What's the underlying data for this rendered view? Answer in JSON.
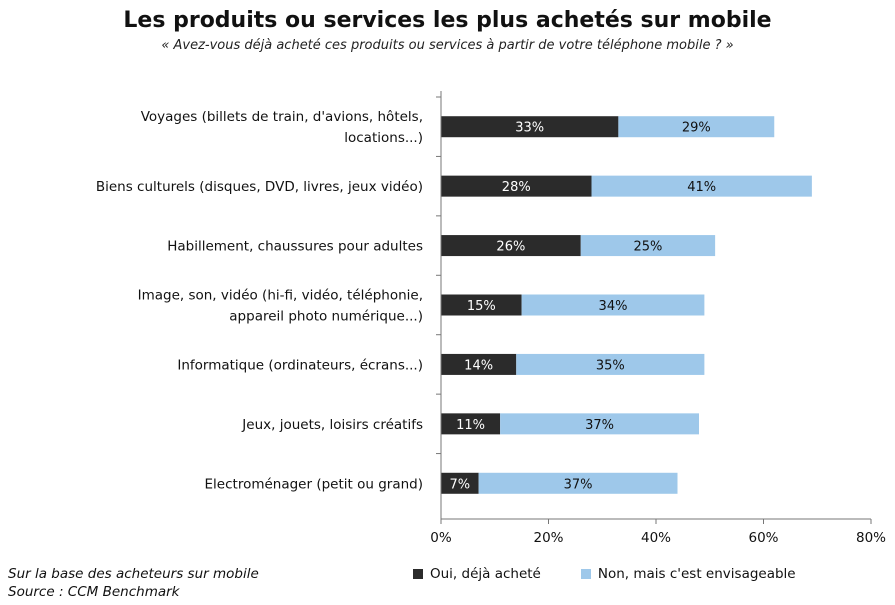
{
  "chart_data": {
    "type": "bar",
    "orientation": "horizontal",
    "stacked": true,
    "title": "Les produits ou services les plus achetés sur mobile",
    "subtitle": "« Avez-vous déjà acheté ces produits ou services à partir de votre téléphone mobile ? »",
    "categories": [
      [
        "Voyages (billets de train, d'avions, hôtels,",
        "locations...)"
      ],
      [
        "Biens culturels (disques, DVD, livres, jeux vidéo)"
      ],
      [
        "Habillement, chaussures pour adultes"
      ],
      [
        "Image, son, vidéo (hi-fi, vidéo, téléphonie,",
        "appareil photo numérique...)"
      ],
      [
        "Informatique (ordinateurs, écrans...)"
      ],
      [
        "Jeux, jouets, loisirs créatifs"
      ],
      [
        "Electroménager (petit ou grand)"
      ]
    ],
    "series": [
      {
        "name": "Oui, déjà acheté",
        "color": "#2b2b2b",
        "label_color": "#ffffff",
        "values": [
          33,
          28,
          26,
          15,
          14,
          11,
          7
        ],
        "labels": [
          "33%",
          "28%",
          "26%",
          "15%",
          "14%",
          "11%",
          "7%"
        ]
      },
      {
        "name": "Non, mais c'est envisageable",
        "color": "#9ec8ea",
        "label_color": "#111111",
        "values": [
          29,
          41,
          25,
          34,
          35,
          37,
          37
        ],
        "labels": [
          "29%",
          "41%",
          "25%",
          "34%",
          "35%",
          "37%",
          "37%"
        ]
      }
    ],
    "xlim": [
      0,
      80
    ],
    "xticks": [
      0,
      20,
      40,
      60,
      80
    ],
    "xtick_labels": [
      "0%",
      "20%",
      "40%",
      "60%",
      "80%"
    ],
    "grid": false,
    "legend_position": "bottom-right"
  },
  "footer": {
    "note": "Sur la base des acheteurs sur mobile",
    "source": "Source : CCM Benchmark"
  }
}
